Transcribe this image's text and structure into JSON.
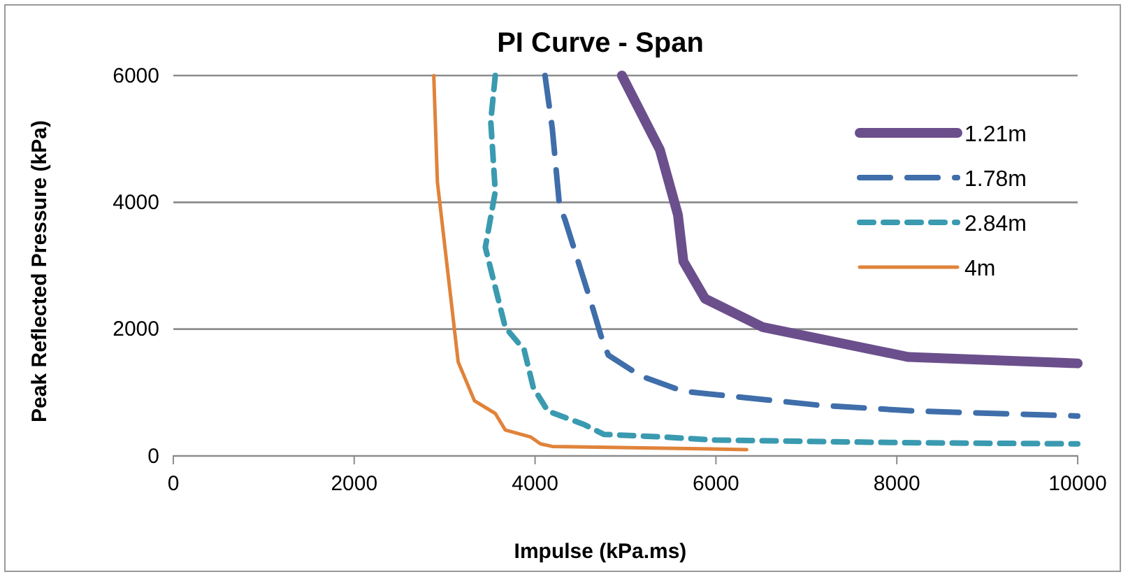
{
  "chart_data": {
    "type": "line",
    "title": "PI Curve - Span",
    "xlabel": "Impulse (kPa.ms)",
    "ylabel": "Peak Reflected Pressure (kPa)",
    "xlim": [
      0,
      10000
    ],
    "xticks": [
      0,
      2000,
      4000,
      6000,
      8000,
      10000
    ],
    "ylim": [
      0,
      6000
    ],
    "yticks": [
      0,
      2000,
      4000,
      6000
    ],
    "grid": "y",
    "legend": "top right",
    "marker": "none",
    "series": [
      {
        "name": "1.21m",
        "color": "#6b4f8c",
        "line_style": "solid",
        "x": [
          4960,
          5380,
          5580,
          5640,
          5880,
          6520,
          8130,
          10000
        ],
        "values": [
          6000,
          4830,
          3800,
          3070,
          2480,
          2030,
          1560,
          1460
        ]
      },
      {
        "name": "1.78m",
        "color": "#3f6eaa",
        "line_style": "dashed",
        "x": [
          4110,
          4190,
          4270,
          4330,
          4630,
          4730,
          4810,
          5170,
          5640,
          7140,
          8180,
          10000
        ],
        "values": [
          6000,
          5170,
          3950,
          3730,
          2370,
          1890,
          1590,
          1260,
          1020,
          800,
          710,
          630
        ]
      },
      {
        "name": "2.84m",
        "color": "#3a9ab0",
        "line_style": "dashed",
        "x": [
          3560,
          3510,
          3560,
          3450,
          3670,
          3880,
          3980,
          4140,
          4550,
          4760,
          5390,
          6000,
          8030,
          10000
        ],
        "values": [
          6000,
          5280,
          4170,
          3290,
          2030,
          1670,
          1080,
          710,
          490,
          340,
          300,
          250,
          210,
          190
        ]
      },
      {
        "name": "4m",
        "color": "#e0833a",
        "line_style": "solid",
        "x": [
          2880,
          2890,
          2920,
          3150,
          3330,
          3560,
          3670,
          3950,
          4060,
          4190,
          6340
        ],
        "values": [
          6000,
          5570,
          4320,
          1480,
          870,
          670,
          410,
          300,
          190,
          150,
          100
        ]
      }
    ]
  }
}
